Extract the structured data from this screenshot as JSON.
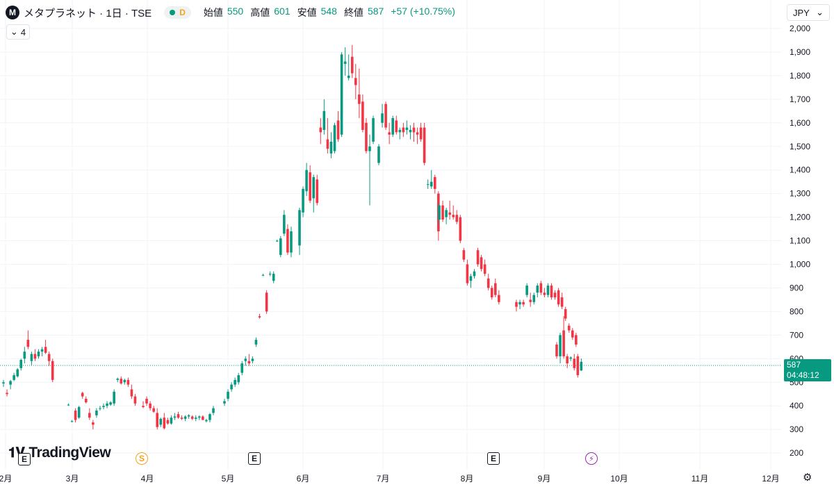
{
  "header": {
    "logo_letter": "M",
    "title": "メタプラネット · 1日 · TSE",
    "interval_badge": "D",
    "open_label": "始値",
    "open_value": "550",
    "high_label": "高値",
    "high_value": "601",
    "low_label": "安値",
    "low_value": "548",
    "close_label": "終値",
    "close_value": "587",
    "change": "+57 (+10.75%)"
  },
  "indicator_count": "4",
  "currency": "JPY",
  "price_tag": {
    "price": "587",
    "countdown": "04:48:12"
  },
  "brand": "TradingView",
  "events": {
    "earnings": "E",
    "split": "S",
    "flash": "⚡"
  },
  "icons": [
    "tradingview-logo-icon",
    "chevron-down-icon",
    "settings-icon",
    "flash-icon"
  ],
  "colors": {
    "up": "#089981",
    "down": "#f23645",
    "grid": "#f0f3fa",
    "axis_text": "#131722"
  },
  "chart_data": {
    "type": "candlestick",
    "y_axis": {
      "ticks": [
        200,
        300,
        400,
        500,
        600,
        700,
        800,
        900,
        1000,
        1100,
        1200,
        1300,
        1400,
        1500,
        1600,
        1700,
        1800,
        1900,
        2000
      ],
      "ylim": [
        175,
        2025
      ]
    },
    "x_axis": {
      "labels": [
        "2月",
        "3月",
        "4月",
        "5月",
        "6月",
        "7月",
        "8月",
        "9月",
        "10月",
        "11月",
        "12月"
      ]
    },
    "last_price": 587,
    "candles": [
      {
        "o": 495,
        "h": 510,
        "l": 480,
        "c": 500
      },
      {
        "o": 455,
        "h": 470,
        "l": 440,
        "c": 450
      },
      {
        "o": 490,
        "h": 510,
        "l": 470,
        "c": 505
      },
      {
        "o": 510,
        "h": 540,
        "l": 505,
        "c": 530
      },
      {
        "o": 525,
        "h": 560,
        "l": 520,
        "c": 555
      },
      {
        "o": 560,
        "h": 600,
        "l": 550,
        "c": 595
      },
      {
        "o": 600,
        "h": 650,
        "l": 580,
        "c": 630
      },
      {
        "o": 680,
        "h": 720,
        "l": 640,
        "c": 650
      },
      {
        "o": 590,
        "h": 630,
        "l": 570,
        "c": 620
      },
      {
        "o": 620,
        "h": 640,
        "l": 590,
        "c": 600
      },
      {
        "o": 610,
        "h": 640,
        "l": 600,
        "c": 630
      },
      {
        "o": 630,
        "h": 650,
        "l": 610,
        "c": 640
      },
      {
        "o": 650,
        "h": 680,
        "l": 620,
        "c": 625
      },
      {
        "o": 620,
        "h": 630,
        "l": 570,
        "c": 590
      },
      {
        "o": 590,
        "h": 600,
        "l": 500,
        "c": 510
      },
      {
        "o": 405,
        "h": 410,
        "l": 400,
        "c": 405
      },
      {
        "o": 335,
        "h": 340,
        "l": 330,
        "c": 335
      },
      {
        "o": 380,
        "h": 390,
        "l": 330,
        "c": 340
      },
      {
        "o": 350,
        "h": 400,
        "l": 345,
        "c": 395
      },
      {
        "o": 455,
        "h": 460,
        "l": 430,
        "c": 440
      },
      {
        "o": 430,
        "h": 440,
        "l": 410,
        "c": 415
      },
      {
        "o": 370,
        "h": 390,
        "l": 340,
        "c": 350
      },
      {
        "o": 330,
        "h": 340,
        "l": 300,
        "c": 320
      },
      {
        "o": 360,
        "h": 390,
        "l": 350,
        "c": 380
      },
      {
        "o": 390,
        "h": 400,
        "l": 380,
        "c": 390
      },
      {
        "o": 395,
        "h": 410,
        "l": 385,
        "c": 400
      },
      {
        "o": 400,
        "h": 420,
        "l": 390,
        "c": 410
      },
      {
        "o": 405,
        "h": 420,
        "l": 400,
        "c": 415
      },
      {
        "o": 410,
        "h": 470,
        "l": 400,
        "c": 460
      },
      {
        "o": 510,
        "h": 520,
        "l": 500,
        "c": 515
      },
      {
        "o": 515,
        "h": 525,
        "l": 490,
        "c": 495
      },
      {
        "o": 500,
        "h": 515,
        "l": 490,
        "c": 510
      },
      {
        "o": 510,
        "h": 520,
        "l": 480,
        "c": 490
      },
      {
        "o": 470,
        "h": 490,
        "l": 430,
        "c": 440
      },
      {
        "o": 440,
        "h": 450,
        "l": 400,
        "c": 410
      },
      {
        "o": 400,
        "h": 420,
        "l": 390,
        "c": 395
      },
      {
        "o": 430,
        "h": 440,
        "l": 400,
        "c": 410
      },
      {
        "o": 410,
        "h": 420,
        "l": 380,
        "c": 390
      },
      {
        "o": 390,
        "h": 400,
        "l": 370,
        "c": 375
      },
      {
        "o": 370,
        "h": 390,
        "l": 300,
        "c": 310
      },
      {
        "o": 320,
        "h": 350,
        "l": 310,
        "c": 345
      },
      {
        "o": 350,
        "h": 370,
        "l": 300,
        "c": 305
      },
      {
        "o": 340,
        "h": 350,
        "l": 320,
        "c": 325
      },
      {
        "o": 325,
        "h": 360,
        "l": 320,
        "c": 350
      },
      {
        "o": 350,
        "h": 370,
        "l": 340,
        "c": 355
      },
      {
        "o": 365,
        "h": 375,
        "l": 345,
        "c": 350
      },
      {
        "o": 350,
        "h": 360,
        "l": 340,
        "c": 345
      },
      {
        "o": 345,
        "h": 360,
        "l": 335,
        "c": 355
      },
      {
        "o": 355,
        "h": 365,
        "l": 345,
        "c": 360
      },
      {
        "o": 355,
        "h": 360,
        "l": 340,
        "c": 345
      },
      {
        "o": 345,
        "h": 360,
        "l": 335,
        "c": 350
      },
      {
        "o": 350,
        "h": 360,
        "l": 340,
        "c": 355
      },
      {
        "o": 355,
        "h": 360,
        "l": 340,
        "c": 340
      },
      {
        "o": 335,
        "h": 345,
        "l": 330,
        "c": 340
      },
      {
        "o": 340,
        "h": 370,
        "l": 330,
        "c": 365
      },
      {
        "o": 370,
        "h": 400,
        "l": 360,
        "c": 390
      },
      {
        "o": 410,
        "h": 430,
        "l": 400,
        "c": 420
      },
      {
        "o": 430,
        "h": 470,
        "l": 420,
        "c": 460
      },
      {
        "o": 470,
        "h": 500,
        "l": 460,
        "c": 490
      },
      {
        "o": 490,
        "h": 520,
        "l": 480,
        "c": 510
      },
      {
        "o": 500,
        "h": 540,
        "l": 490,
        "c": 530
      },
      {
        "o": 540,
        "h": 590,
        "l": 530,
        "c": 580
      },
      {
        "o": 590,
        "h": 610,
        "l": 570,
        "c": 600
      },
      {
        "o": 590,
        "h": 620,
        "l": 570,
        "c": 580
      },
      {
        "o": 590,
        "h": 610,
        "l": 580,
        "c": 600
      },
      {
        "o": 660,
        "h": 690,
        "l": 650,
        "c": 680
      },
      {
        "o": 780,
        "h": 790,
        "l": 770,
        "c": 775
      },
      {
        "o": 955,
        "h": 960,
        "l": 950,
        "c": 955
      },
      {
        "o": 880,
        "h": 890,
        "l": 790,
        "c": 800
      },
      {
        "o": 960,
        "h": 970,
        "l": 950,
        "c": 960
      },
      {
        "o": 930,
        "h": 970,
        "l": 920,
        "c": 960
      },
      {
        "o": 1100,
        "h": 1105,
        "l": 1095,
        "c": 1100
      },
      {
        "o": 1040,
        "h": 1120,
        "l": 1030,
        "c": 1110
      },
      {
        "o": 1130,
        "h": 1230,
        "l": 1120,
        "c": 1210
      },
      {
        "o": 1150,
        "h": 1170,
        "l": 1040,
        "c": 1050
      },
      {
        "o": 1050,
        "h": 1160,
        "l": 1030,
        "c": 1140
      },
      {
        "o": 1080,
        "h": 1240,
        "l": 1040,
        "c": 1230
      },
      {
        "o": 1220,
        "h": 1330,
        "l": 1200,
        "c": 1320
      },
      {
        "o": 1310,
        "h": 1430,
        "l": 1290,
        "c": 1400
      },
      {
        "o": 1390,
        "h": 1420,
        "l": 1260,
        "c": 1270
      },
      {
        "o": 1280,
        "h": 1380,
        "l": 1220,
        "c": 1370
      },
      {
        "o": 1360,
        "h": 1380,
        "l": 1250,
        "c": 1260
      },
      {
        "o": 1580,
        "h": 1620,
        "l": 1510,
        "c": 1560
      },
      {
        "o": 1570,
        "h": 1700,
        "l": 1550,
        "c": 1650
      },
      {
        "o": 1530,
        "h": 1620,
        "l": 1470,
        "c": 1490
      },
      {
        "o": 1470,
        "h": 1560,
        "l": 1450,
        "c": 1520
      },
      {
        "o": 1480,
        "h": 1600,
        "l": 1470,
        "c": 1590
      },
      {
        "o": 1610,
        "h": 1650,
        "l": 1520,
        "c": 1530
      },
      {
        "o": 1550,
        "h": 1900,
        "l": 1540,
        "c": 1890
      },
      {
        "o": 1850,
        "h": 1920,
        "l": 1800,
        "c": 1860
      },
      {
        "o": 1790,
        "h": 1890,
        "l": 1780,
        "c": 1800
      },
      {
        "o": 1880,
        "h": 1930,
        "l": 1790,
        "c": 1810
      },
      {
        "o": 1790,
        "h": 1850,
        "l": 1700,
        "c": 1760
      },
      {
        "o": 1720,
        "h": 1830,
        "l": 1620,
        "c": 1680
      },
      {
        "o": 1690,
        "h": 1720,
        "l": 1560,
        "c": 1570
      },
      {
        "o": 1600,
        "h": 1620,
        "l": 1470,
        "c": 1480
      },
      {
        "o": 1480,
        "h": 1550,
        "l": 1250,
        "c": 1500
      },
      {
        "o": 1520,
        "h": 1630,
        "l": 1510,
        "c": 1620
      },
      {
        "o": 1430,
        "h": 1510,
        "l": 1420,
        "c": 1500
      },
      {
        "o": 1600,
        "h": 1680,
        "l": 1580,
        "c": 1640
      },
      {
        "o": 1680,
        "h": 1690,
        "l": 1570,
        "c": 1580
      },
      {
        "o": 1560,
        "h": 1600,
        "l": 1510,
        "c": 1550
      },
      {
        "o": 1550,
        "h": 1630,
        "l": 1540,
        "c": 1620
      },
      {
        "o": 1610,
        "h": 1630,
        "l": 1550,
        "c": 1560
      },
      {
        "o": 1560,
        "h": 1580,
        "l": 1530,
        "c": 1570
      },
      {
        "o": 1580,
        "h": 1600,
        "l": 1540,
        "c": 1560
      },
      {
        "o": 1570,
        "h": 1610,
        "l": 1550,
        "c": 1580
      },
      {
        "o": 1560,
        "h": 1590,
        "l": 1530,
        "c": 1570
      },
      {
        "o": 1580,
        "h": 1600,
        "l": 1520,
        "c": 1560
      },
      {
        "o": 1560,
        "h": 1580,
        "l": 1510,
        "c": 1550
      },
      {
        "o": 1580,
        "h": 1600,
        "l": 1520,
        "c": 1530
      },
      {
        "o": 1580,
        "h": 1600,
        "l": 1420,
        "c": 1430
      },
      {
        "o": 1340,
        "h": 1360,
        "l": 1320,
        "c": 1340
      },
      {
        "o": 1330,
        "h": 1400,
        "l": 1320,
        "c": 1350
      },
      {
        "o": 1370,
        "h": 1380,
        "l": 1300,
        "c": 1320
      },
      {
        "o": 1300,
        "h": 1310,
        "l": 1100,
        "c": 1140
      },
      {
        "o": 1190,
        "h": 1260,
        "l": 1170,
        "c": 1250
      },
      {
        "o": 1250,
        "h": 1270,
        "l": 1180,
        "c": 1190
      },
      {
        "o": 1200,
        "h": 1240,
        "l": 1170,
        "c": 1230
      },
      {
        "o": 1220,
        "h": 1270,
        "l": 1190,
        "c": 1210
      },
      {
        "o": 1210,
        "h": 1250,
        "l": 1190,
        "c": 1200
      },
      {
        "o": 1210,
        "h": 1230,
        "l": 1170,
        "c": 1180
      },
      {
        "o": 1200,
        "h": 1210,
        "l": 1090,
        "c": 1100
      },
      {
        "o": 1060,
        "h": 1070,
        "l": 1010,
        "c": 1020
      },
      {
        "o": 1000,
        "h": 1020,
        "l": 910,
        "c": 920
      },
      {
        "o": 930,
        "h": 960,
        "l": 900,
        "c": 950
      },
      {
        "o": 950,
        "h": 980,
        "l": 940,
        "c": 970
      },
      {
        "o": 1060,
        "h": 1070,
        "l": 990,
        "c": 1000
      },
      {
        "o": 1030,
        "h": 1040,
        "l": 970,
        "c": 980
      },
      {
        "o": 1000,
        "h": 1020,
        "l": 950,
        "c": 960
      },
      {
        "o": 940,
        "h": 960,
        "l": 890,
        "c": 900
      },
      {
        "o": 900,
        "h": 910,
        "l": 850,
        "c": 860
      },
      {
        "o": 920,
        "h": 940,
        "l": 860,
        "c": 870
      },
      {
        "o": 870,
        "h": 890,
        "l": 830,
        "c": 840
      },
      {
        "o": 840,
        "h": 850,
        "l": 800,
        "c": 820
      },
      {
        "o": 830,
        "h": 850,
        "l": 810,
        "c": 840
      },
      {
        "o": 840,
        "h": 850,
        "l": 820,
        "c": 830
      },
      {
        "o": 870,
        "h": 920,
        "l": 860,
        "c": 910
      },
      {
        "o": 850,
        "h": 880,
        "l": 820,
        "c": 840
      },
      {
        "o": 840,
        "h": 880,
        "l": 830,
        "c": 870
      },
      {
        "o": 880,
        "h": 920,
        "l": 860,
        "c": 910
      },
      {
        "o": 920,
        "h": 930,
        "l": 870,
        "c": 880
      },
      {
        "o": 880,
        "h": 900,
        "l": 860,
        "c": 870
      },
      {
        "o": 870,
        "h": 920,
        "l": 860,
        "c": 910
      },
      {
        "o": 910,
        "h": 920,
        "l": 850,
        "c": 860
      },
      {
        "o": 880,
        "h": 890,
        "l": 850,
        "c": 860
      },
      {
        "o": 890,
        "h": 900,
        "l": 820,
        "c": 830
      },
      {
        "o": 860,
        "h": 880,
        "l": 810,
        "c": 820
      },
      {
        "o": 810,
        "h": 820,
        "l": 760,
        "c": 770
      },
      {
        "o": 740,
        "h": 750,
        "l": 710,
        "c": 720
      },
      {
        "o": 720,
        "h": 730,
        "l": 680,
        "c": 690
      },
      {
        "o": 700,
        "h": 710,
        "l": 650,
        "c": 660
      },
      {
        "o": 660,
        "h": 670,
        "l": 600,
        "c": 610
      },
      {
        "o": 610,
        "h": 710,
        "l": 580,
        "c": 700
      },
      {
        "o": 720,
        "h": 780,
        "l": 600,
        "c": 610
      },
      {
        "o": 610,
        "h": 620,
        "l": 560,
        "c": 580
      },
      {
        "o": 600,
        "h": 610,
        "l": 590,
        "c": 605
      },
      {
        "o": 600,
        "h": 620,
        "l": 550,
        "c": 560
      },
      {
        "o": 610,
        "h": 620,
        "l": 520,
        "c": 530
      },
      {
        "o": 550,
        "h": 601,
        "l": 548,
        "c": 587
      }
    ]
  }
}
